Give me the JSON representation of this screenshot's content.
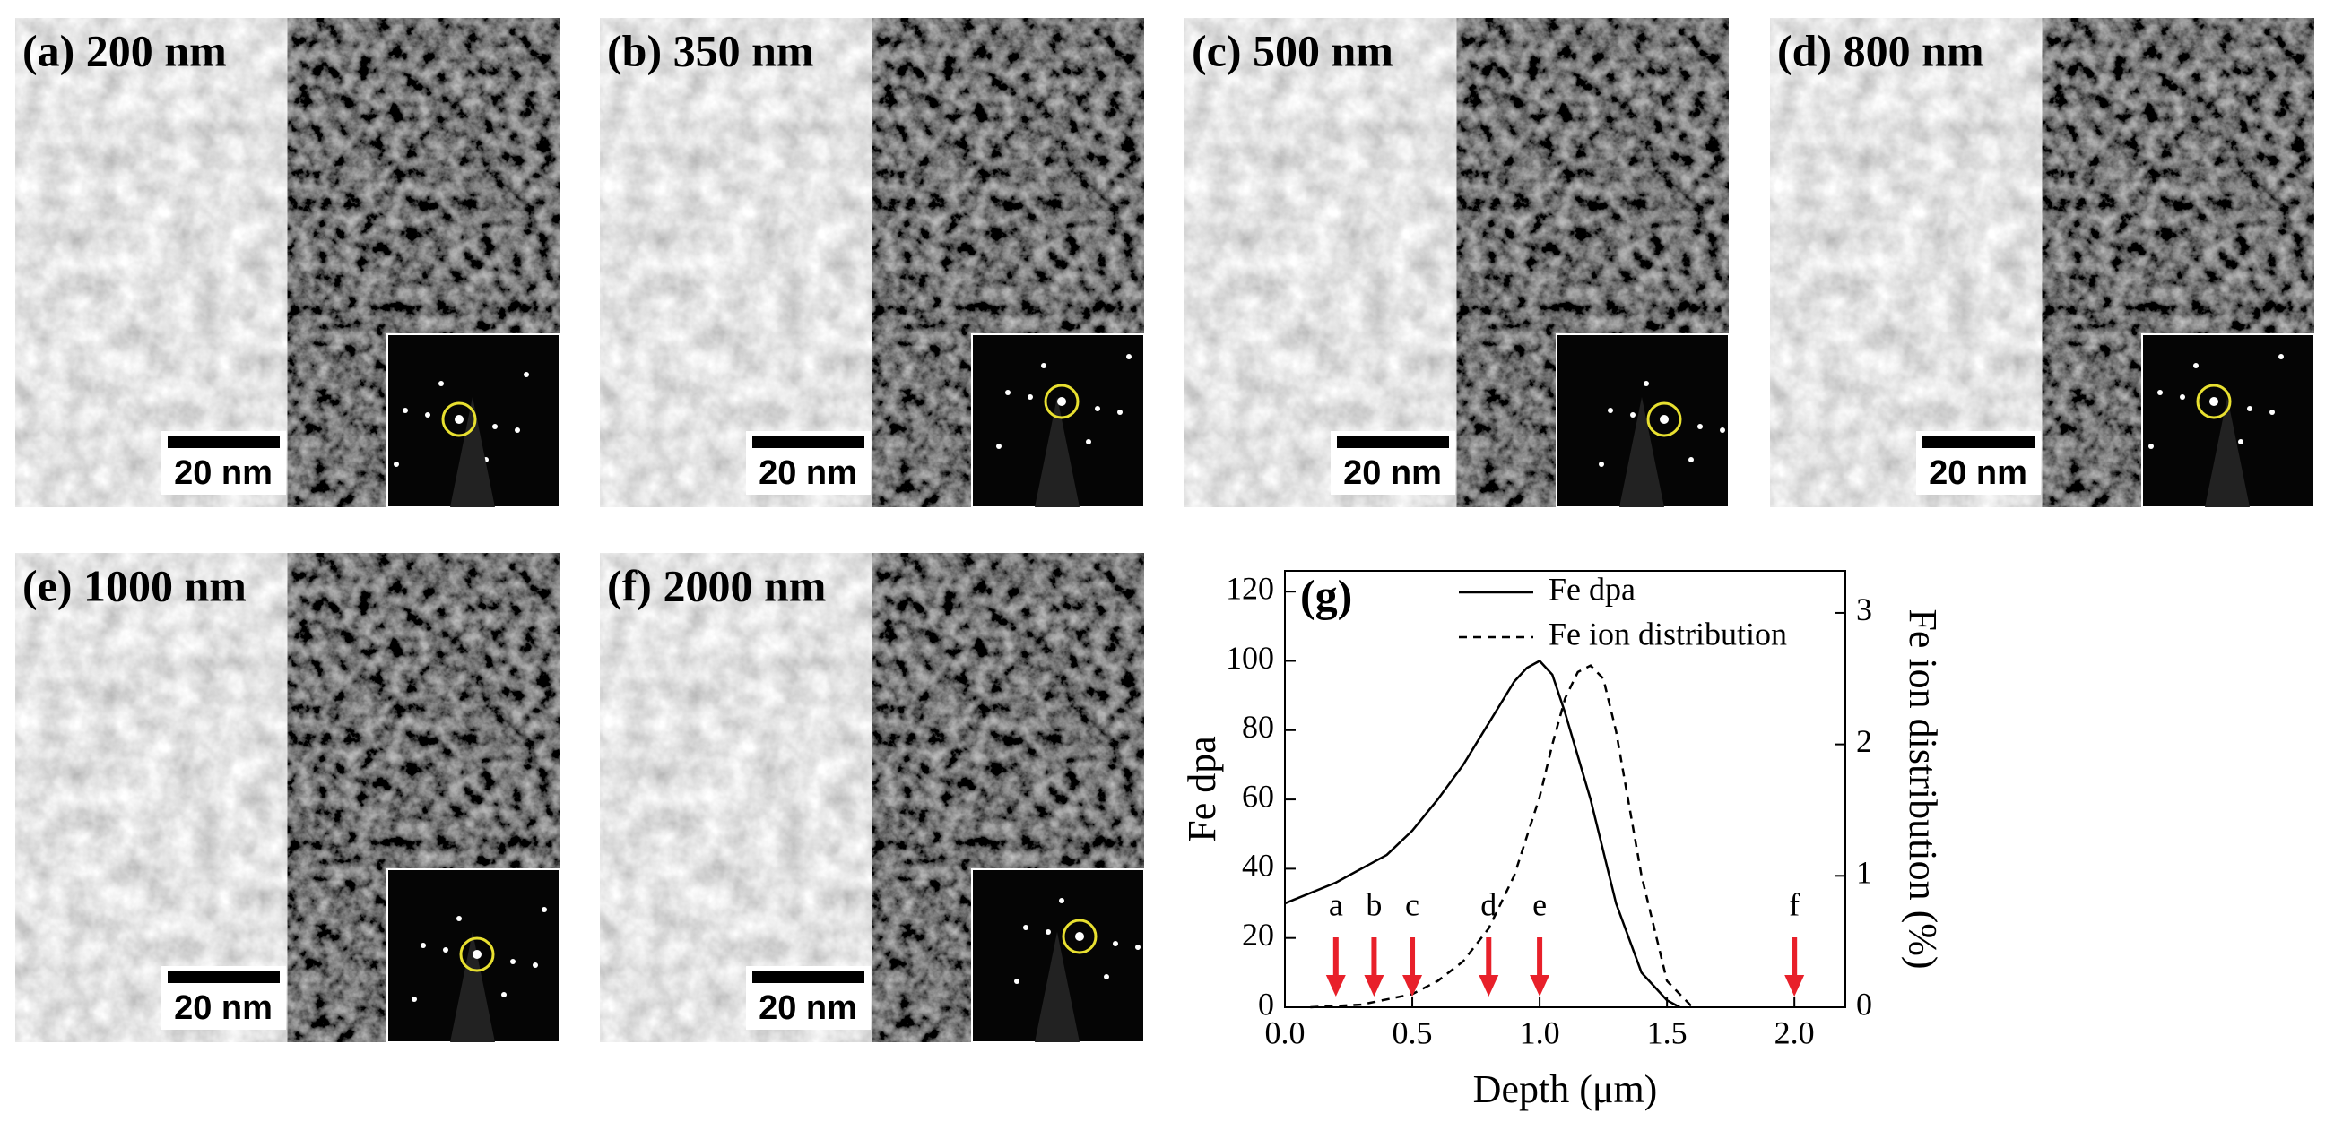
{
  "panels": [
    {
      "label": "(a) 200 nm",
      "scale": "20 nm"
    },
    {
      "label": "(b) 350 nm",
      "scale": "20 nm"
    },
    {
      "label": "(c) 500 nm",
      "scale": "20 nm"
    },
    {
      "label": "(d) 800 nm",
      "scale": "20 nm"
    },
    {
      "label": "(e) 1000 nm",
      "scale": "20 nm"
    },
    {
      "label": "(f) 2000 nm",
      "scale": "20 nm"
    }
  ],
  "chart_data": {
    "type": "line",
    "panel_label": "(g)",
    "x_label": "Depth (μm)",
    "y_label": "Fe dpa",
    "y2_label": "Fe ion distribution (%)",
    "xlim": [
      0,
      2.2
    ],
    "ylim": [
      0,
      126
    ],
    "y2lim": [
      0,
      3.32
    ],
    "xticks": [
      {
        "value": 0,
        "label": "0.0"
      },
      {
        "value": 0.5,
        "label": "0.5"
      },
      {
        "value": 1,
        "label": "1.0"
      },
      {
        "value": 1.5,
        "label": "1.5"
      },
      {
        "value": 2,
        "label": "2.0"
      }
    ],
    "yticks": [
      0,
      20,
      40,
      60,
      80,
      100,
      120
    ],
    "y2ticks": [
      0,
      1,
      2,
      3
    ],
    "legend": "top",
    "series": [
      {
        "name": "Fe dpa",
        "color": "#000000",
        "dash": false,
        "x": [
          0,
          0.2,
          0.4,
          0.5,
          0.6,
          0.7,
          0.8,
          0.9,
          0.95,
          1.0,
          1.05,
          1.1,
          1.2,
          1.3,
          1.4,
          1.5,
          1.55
        ],
        "values": [
          30,
          36,
          44,
          51,
          60,
          70,
          82,
          94,
          98,
          100,
          96,
          85,
          60,
          30,
          10,
          2,
          0
        ]
      },
      {
        "name": "Fe ion distribution",
        "color": "#000000",
        "dash": true,
        "axis": "y2",
        "x": [
          0.1,
          0.3,
          0.5,
          0.6,
          0.7,
          0.8,
          0.9,
          1.0,
          1.05,
          1.1,
          1.15,
          1.2,
          1.25,
          1.3,
          1.4,
          1.5,
          1.6
        ],
        "values": [
          0,
          0.02,
          0.1,
          0.2,
          0.35,
          0.6,
          1.0,
          1.6,
          2.0,
          2.35,
          2.55,
          2.6,
          2.5,
          2.1,
          1.0,
          0.2,
          0
        ]
      }
    ],
    "markers": {
      "x": [
        0.2,
        0.35,
        0.5,
        0.8,
        1.0,
        2.0
      ],
      "labels": [
        "a",
        "b",
        "c",
        "d",
        "e",
        "f"
      ],
      "color": "#e8202a"
    }
  }
}
